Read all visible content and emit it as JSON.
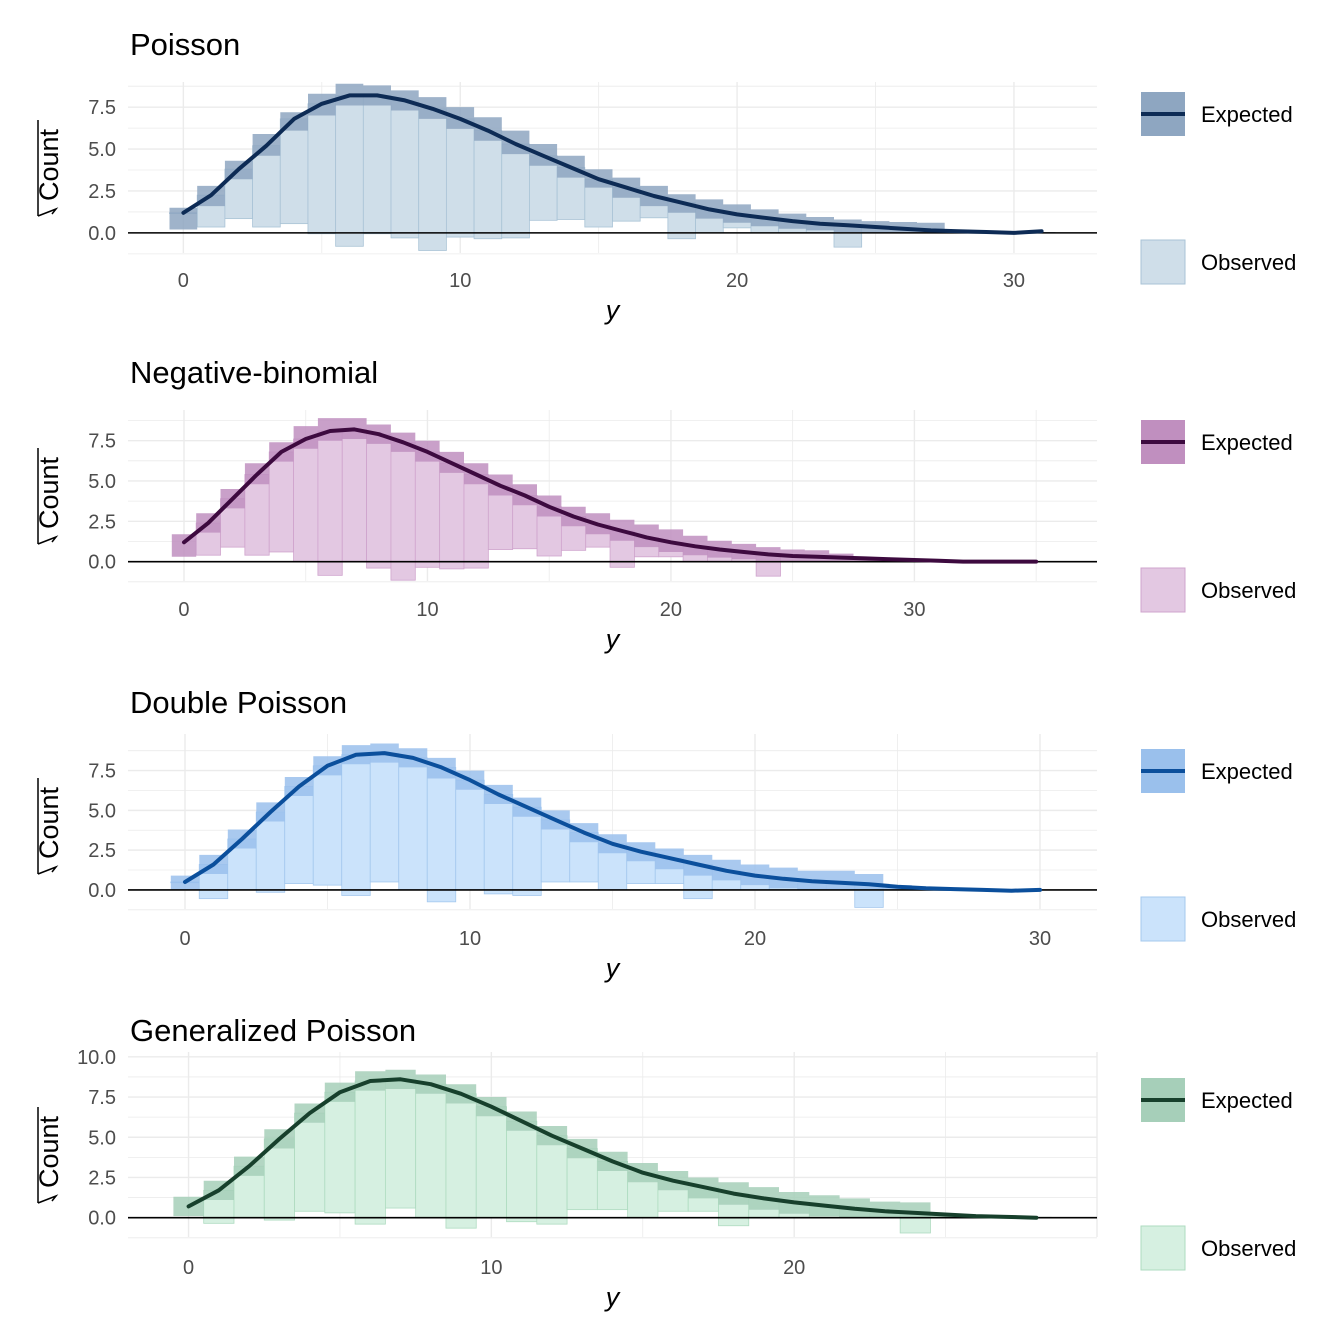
{
  "chart_data": [
    {
      "type": "bar",
      "chart_kind": "hanging rootogram",
      "title": "Poisson",
      "xlabel": "y",
      "ylabel": "Count",
      "ylabel_transform": "sqrt",
      "xlim": [
        -2,
        33
      ],
      "ylim": [
        -1.2,
        9.0
      ],
      "x_ticks": [
        0,
        10,
        20,
        30
      ],
      "y_ticks": [
        0.0,
        2.5,
        5.0,
        7.5
      ],
      "y_tick_labels": [
        "0.0",
        "2.5",
        "5.0",
        "7.5"
      ],
      "grid": true,
      "legend_position": "right",
      "colors": {
        "line": "#0d2b55",
        "band": "#8ea6c1",
        "obs_fill": "#cfdee9",
        "obs_edge": "#a9c3d6"
      },
      "series": [
        {
          "name": "Expected",
          "x": [
            0,
            1,
            2,
            3,
            4,
            5,
            6,
            7,
            8,
            9,
            10,
            11,
            12,
            13,
            14,
            15,
            16,
            17,
            18,
            19,
            20,
            21,
            22,
            23,
            24,
            25,
            26,
            27,
            28,
            29,
            30,
            31
          ],
          "values": [
            1.2,
            2.25,
            3.8,
            5.2,
            6.8,
            7.7,
            8.2,
            8.2,
            7.9,
            7.4,
            6.8,
            6.1,
            5.3,
            4.6,
            3.9,
            3.2,
            2.7,
            2.2,
            1.8,
            1.4,
            1.1,
            0.9,
            0.7,
            0.55,
            0.45,
            0.35,
            0.25,
            0.15,
            0.1,
            0.05,
            0.0,
            0.1
          ],
          "lower": [
            0.2,
            1.6,
            3.2,
            4.6,
            6.1,
            7.0,
            7.6,
            7.6,
            7.3,
            6.8,
            6.2,
            5.5,
            4.7,
            4.0,
            3.3,
            2.7,
            2.1,
            1.6,
            1.2,
            0.85,
            0.6,
            0.4,
            0.25,
            0.15,
            0.05,
            0.0,
            0.0,
            0.0,
            0.0,
            0.0,
            0.0,
            0.0
          ],
          "upper": [
            1.5,
            2.8,
            4.3,
            5.9,
            7.2,
            8.3,
            8.9,
            8.8,
            8.5,
            8.1,
            7.5,
            6.9,
            6.1,
            5.3,
            4.6,
            3.8,
            3.3,
            2.8,
            2.3,
            2.0,
            1.7,
            1.4,
            1.15,
            0.95,
            0.8,
            0.7,
            0.65,
            0.6,
            0.1,
            0.05,
            0.0,
            0.05
          ]
        },
        {
          "name": "Observed",
          "x": [
            0,
            1,
            2,
            3,
            4,
            5,
            6,
            7,
            8,
            9,
            10,
            11,
            12,
            13,
            14,
            15,
            16,
            17,
            18,
            19,
            20,
            21,
            22,
            23,
            24
          ],
          "values": [
            1.2,
            2.25,
            3.8,
            5.2,
            6.8,
            7.7,
            8.2,
            8.2,
            7.9,
            7.4,
            6.8,
            6.1,
            5.3,
            4.6,
            3.9,
            3.2,
            2.7,
            2.2,
            1.8,
            1.4,
            1.1,
            0.9,
            0.7,
            0.55,
            0.45
          ],
          "bottom": [
            1.15,
            0.35,
            0.85,
            0.35,
            0.55,
            -0.05,
            -0.8,
            -0.05,
            -0.3,
            -1.05,
            -0.25,
            -0.35,
            -0.3,
            0.75,
            0.8,
            0.35,
            0.7,
            0.9,
            -0.35,
            0.0,
            0.3,
            0.0,
            0.0,
            0.0,
            -0.85
          ]
        }
      ]
    },
    {
      "type": "bar",
      "chart_kind": "hanging rootogram",
      "title": "Negative-binomial",
      "xlabel": "y",
      "ylabel": "Count",
      "ylabel_transform": "sqrt",
      "xlim": [
        -2.3,
        37.5
      ],
      "ylim": [
        -1.2,
        9.4
      ],
      "x_ticks": [
        0,
        10,
        20,
        30
      ],
      "y_ticks": [
        0.0,
        2.5,
        5.0,
        7.5
      ],
      "y_tick_labels": [
        "0.0",
        "2.5",
        "5.0",
        "7.5"
      ],
      "grid": true,
      "legend_position": "right",
      "colors": {
        "line": "#3d0a3f",
        "band": "#c08fbf",
        "obs_fill": "#e3c8e2",
        "obs_edge": "#cfa4cd"
      },
      "series": [
        {
          "name": "Expected",
          "x": [
            0,
            1,
            2,
            3,
            4,
            5,
            6,
            7,
            8,
            9,
            10,
            11,
            12,
            13,
            14,
            15,
            16,
            17,
            18,
            19,
            20,
            21,
            22,
            23,
            24,
            25,
            26,
            27,
            28,
            29,
            30,
            31,
            32,
            33,
            34,
            35
          ],
          "values": [
            1.2,
            2.4,
            3.9,
            5.4,
            6.8,
            7.6,
            8.1,
            8.2,
            7.9,
            7.4,
            6.8,
            6.1,
            5.4,
            4.7,
            4.1,
            3.4,
            2.8,
            2.3,
            1.9,
            1.5,
            1.2,
            0.95,
            0.75,
            0.6,
            0.45,
            0.35,
            0.3,
            0.25,
            0.2,
            0.15,
            0.1,
            0.05,
            0.0,
            0.0,
            0.0,
            0.0
          ],
          "lower": [
            0.3,
            1.8,
            3.3,
            4.8,
            6.2,
            7.0,
            7.5,
            7.6,
            7.3,
            6.8,
            6.2,
            5.5,
            4.8,
            4.1,
            3.5,
            2.8,
            2.2,
            1.7,
            1.3,
            0.9,
            0.6,
            0.4,
            0.25,
            0.15,
            0.05,
            0.0,
            0.0,
            0.0,
            0.0,
            0.0,
            0.0,
            0.0,
            0.0,
            0.0,
            0.0,
            0.0
          ],
          "upper": [
            1.7,
            3.0,
            4.5,
            6.1,
            7.4,
            8.4,
            8.9,
            8.9,
            8.5,
            8.0,
            7.5,
            6.8,
            6.1,
            5.4,
            4.8,
            4.1,
            3.4,
            3.0,
            2.6,
            2.3,
            2.0,
            1.6,
            1.3,
            1.1,
            0.9,
            0.75,
            0.7,
            0.5,
            0.2,
            0.15,
            0.1,
            0.05,
            0.0,
            0.0,
            0.0,
            0.0
          ]
        },
        {
          "name": "Observed",
          "x": [
            0,
            1,
            2,
            3,
            4,
            5,
            6,
            7,
            8,
            9,
            10,
            11,
            12,
            13,
            14,
            15,
            16,
            17,
            18,
            19,
            20,
            21,
            22,
            23,
            24
          ],
          "values": [
            1.2,
            2.4,
            3.9,
            5.4,
            6.8,
            7.6,
            8.1,
            8.2,
            7.9,
            7.4,
            6.8,
            6.1,
            5.4,
            4.7,
            4.1,
            3.4,
            2.8,
            2.3,
            1.9,
            1.5,
            1.2,
            0.95,
            0.75,
            0.6,
            0.45
          ],
          "bottom": [
            1.2,
            0.4,
            0.9,
            0.4,
            0.6,
            0.0,
            -0.85,
            0.0,
            -0.4,
            -1.15,
            -0.35,
            -0.45,
            -0.4,
            0.75,
            0.8,
            0.35,
            0.7,
            0.9,
            -0.35,
            0.3,
            0.3,
            0.0,
            0.0,
            0.0,
            -0.9
          ]
        }
      ]
    },
    {
      "type": "bar",
      "chart_kind": "hanging rootogram",
      "title": "Double Poisson",
      "xlabel": "y",
      "ylabel": "Count",
      "ylabel_transform": "sqrt",
      "xlim": [
        -2,
        32
      ],
      "ylim": [
        -1.2,
        9.8
      ],
      "x_ticks": [
        0,
        10,
        20,
        30
      ],
      "y_ticks": [
        0.0,
        2.5,
        5.0,
        7.5
      ],
      "y_tick_labels": [
        "0.0",
        "2.5",
        "5.0",
        "7.5"
      ],
      "grid": true,
      "legend_position": "right",
      "colors": {
        "line": "#0b4f9c",
        "band": "#9ac0ec",
        "obs_fill": "#cbe3fb",
        "obs_edge": "#a4c8ee"
      },
      "series": [
        {
          "name": "Expected",
          "x": [
            0,
            1,
            2,
            3,
            4,
            5,
            6,
            7,
            8,
            9,
            10,
            11,
            12,
            13,
            14,
            15,
            16,
            17,
            18,
            19,
            20,
            21,
            22,
            23,
            24,
            25,
            26,
            27,
            28,
            29,
            30
          ],
          "values": [
            0.5,
            1.6,
            3.2,
            4.9,
            6.5,
            7.8,
            8.5,
            8.6,
            8.3,
            7.7,
            6.9,
            6.0,
            5.2,
            4.4,
            3.6,
            2.9,
            2.4,
            2.0,
            1.6,
            1.2,
            0.9,
            0.7,
            0.55,
            0.45,
            0.35,
            0.2,
            0.1,
            0.05,
            0.0,
            -0.05,
            0.0
          ],
          "lower": [
            0.0,
            1.0,
            2.6,
            4.3,
            5.9,
            7.2,
            7.9,
            8.0,
            7.7,
            7.0,
            6.3,
            5.4,
            4.6,
            3.8,
            3.0,
            2.3,
            1.8,
            1.3,
            0.9,
            0.6,
            0.3,
            0.1,
            0.0,
            0.0,
            0.0,
            0.0,
            0.0,
            0.0,
            0.0,
            0.0,
            0.0
          ],
          "upper": [
            0.9,
            2.2,
            3.8,
            5.5,
            7.1,
            8.4,
            9.1,
            9.2,
            8.9,
            8.3,
            7.5,
            6.6,
            5.8,
            5.0,
            4.2,
            3.5,
            3.0,
            2.6,
            2.2,
            1.9,
            1.6,
            1.4,
            1.2,
            1.2,
            1.0,
            0.3,
            0.15,
            0.1,
            0.05,
            0.0,
            0.0
          ]
        },
        {
          "name": "Observed",
          "x": [
            0,
            1,
            2,
            3,
            4,
            5,
            6,
            7,
            8,
            9,
            10,
            11,
            12,
            13,
            14,
            15,
            16,
            17,
            18,
            19,
            20,
            21,
            22,
            23,
            24
          ],
          "values": [
            0.5,
            1.6,
            3.2,
            4.9,
            6.5,
            7.8,
            8.5,
            8.6,
            8.3,
            7.7,
            6.9,
            6.0,
            5.2,
            4.4,
            3.6,
            2.9,
            2.4,
            2.0,
            1.6,
            1.2,
            0.9,
            0.7,
            0.55,
            0.45,
            0.35
          ],
          "bottom": [
            0.45,
            -0.55,
            0.0,
            -0.15,
            0.4,
            0.3,
            -0.35,
            0.5,
            0.0,
            -0.75,
            0.0,
            -0.25,
            -0.35,
            0.5,
            0.5,
            0.0,
            0.4,
            0.4,
            -0.55,
            0.0,
            0.0,
            0.0,
            0.0,
            0.0,
            -1.1
          ]
        }
      ]
    },
    {
      "type": "bar",
      "chart_kind": "hanging rootogram",
      "title": "Generalized Poisson",
      "xlabel": "y",
      "ylabel": "Count",
      "ylabel_transform": "sqrt",
      "xlim": [
        -2,
        30
      ],
      "ylim": [
        -1.2,
        10.3
      ],
      "x_ticks": [
        0,
        10,
        20
      ],
      "y_ticks": [
        0.0,
        2.5,
        5.0,
        7.5,
        10.0
      ],
      "y_tick_labels": [
        "0.0",
        "2.5",
        "5.0",
        "7.5",
        "10.0"
      ],
      "grid": true,
      "legend_position": "right",
      "colors": {
        "line": "#17402c",
        "band": "#a6cfb9",
        "obs_fill": "#d6f0e1",
        "obs_edge": "#aedbc0"
      },
      "series": [
        {
          "name": "Expected",
          "x": [
            0,
            1,
            2,
            3,
            4,
            5,
            6,
            7,
            8,
            9,
            10,
            11,
            12,
            13,
            14,
            15,
            16,
            17,
            18,
            19,
            20,
            21,
            22,
            23,
            24,
            25,
            26,
            27,
            28
          ],
          "values": [
            0.7,
            1.7,
            3.2,
            4.9,
            6.5,
            7.8,
            8.5,
            8.6,
            8.3,
            7.7,
            6.9,
            6.0,
            5.1,
            4.3,
            3.5,
            2.8,
            2.3,
            1.9,
            1.5,
            1.2,
            0.95,
            0.75,
            0.55,
            0.4,
            0.3,
            0.2,
            0.1,
            0.05,
            0.0
          ],
          "lower": [
            0.1,
            1.1,
            2.6,
            4.3,
            5.9,
            7.2,
            7.9,
            8.0,
            7.7,
            7.1,
            6.3,
            5.4,
            4.5,
            3.7,
            2.9,
            2.2,
            1.7,
            1.2,
            0.8,
            0.5,
            0.25,
            0.1,
            0.0,
            0.0,
            0.0,
            0.0,
            0.0,
            0.0,
            0.0
          ],
          "upper": [
            1.3,
            2.3,
            3.8,
            5.5,
            7.1,
            8.4,
            9.1,
            9.2,
            8.9,
            8.3,
            7.5,
            6.6,
            5.7,
            4.9,
            4.1,
            3.4,
            2.9,
            2.5,
            2.2,
            1.9,
            1.6,
            1.4,
            1.2,
            1.0,
            0.95,
            0.25,
            0.15,
            0.1,
            0.05
          ]
        },
        {
          "name": "Observed",
          "x": [
            0,
            1,
            2,
            3,
            4,
            5,
            6,
            7,
            8,
            9,
            10,
            11,
            12,
            13,
            14,
            15,
            16,
            17,
            18,
            19,
            20,
            21,
            22,
            23,
            24
          ],
          "values": [
            0.7,
            1.7,
            3.2,
            4.9,
            6.5,
            7.8,
            8.5,
            8.6,
            8.3,
            7.7,
            6.9,
            6.0,
            5.1,
            4.3,
            3.5,
            2.8,
            2.3,
            1.9,
            1.5,
            1.2,
            0.95,
            0.75,
            0.55,
            0.4,
            0.3
          ],
          "bottom": [
            0.7,
            -0.35,
            0.0,
            -0.15,
            0.4,
            0.3,
            -0.4,
            0.6,
            0.0,
            -0.65,
            0.0,
            -0.25,
            -0.4,
            0.5,
            0.5,
            0.0,
            0.4,
            0.4,
            -0.5,
            0.0,
            0.0,
            0.0,
            0.0,
            0.0,
            -0.95
          ]
        }
      ]
    }
  ]
}
